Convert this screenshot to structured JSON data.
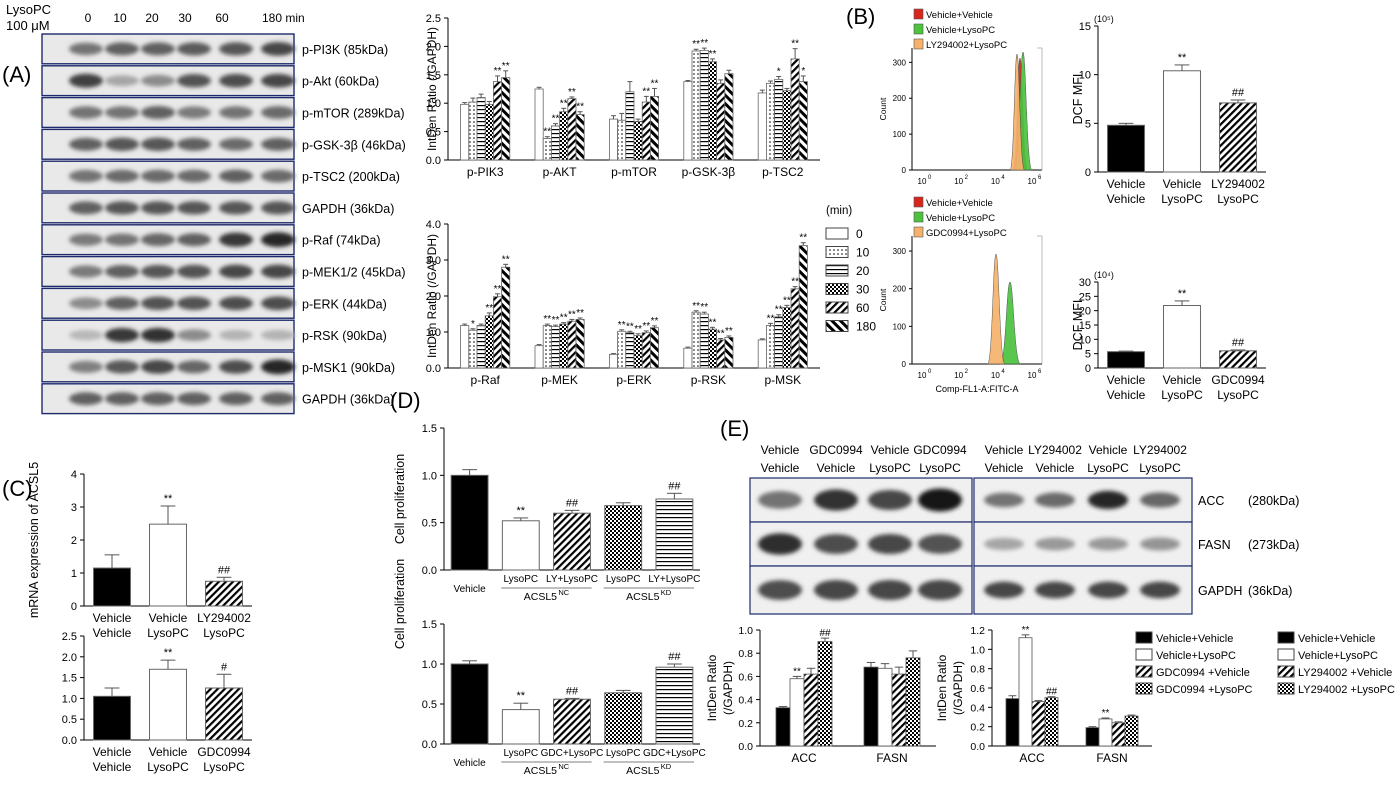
{
  "panel_labels": {
    "A": "(A)",
    "B": "(B)",
    "C": "(C)",
    "D": "(D)",
    "E": "(E)"
  },
  "western_A": {
    "treatment_label": [
      "LysoPC",
      "100 μM"
    ],
    "timepoints": [
      "0",
      "10",
      "20",
      "30",
      "60",
      "180 min"
    ],
    "bands": [
      "p-PI3K (85kDa)",
      "p-Akt (60kDa)",
      "p-mTOR (289kDa)",
      "p-GSK-3β (46kDa)",
      "p-TSC2 (200kDa)",
      "GAPDH (36kDa)",
      "p-Raf (74kDa)",
      "p-MEK1/2 (45kDa)",
      "p-ERK (44kDa)",
      "p-RSK (90kDa)",
      "p-MSK1 (90kDa)",
      "GAPDH (36kDa)"
    ],
    "band_intensity": [
      [
        0.55,
        0.62,
        0.62,
        0.64,
        0.66,
        0.72
      ],
      [
        0.75,
        0.35,
        0.45,
        0.68,
        0.7,
        0.72
      ],
      [
        0.55,
        0.55,
        0.62,
        0.52,
        0.55,
        0.58
      ],
      [
        0.62,
        0.66,
        0.66,
        0.62,
        0.58,
        0.62
      ],
      [
        0.55,
        0.58,
        0.58,
        0.58,
        0.62,
        0.58
      ],
      [
        0.62,
        0.66,
        0.66,
        0.66,
        0.66,
        0.66
      ],
      [
        0.52,
        0.55,
        0.6,
        0.62,
        0.78,
        0.85
      ],
      [
        0.52,
        0.62,
        0.66,
        0.68,
        0.72,
        0.72
      ],
      [
        0.45,
        0.62,
        0.68,
        0.68,
        0.7,
        0.7
      ],
      [
        0.28,
        0.78,
        0.8,
        0.45,
        0.3,
        0.3
      ],
      [
        0.5,
        0.65,
        0.72,
        0.6,
        0.7,
        0.85
      ],
      [
        0.62,
        0.62,
        0.62,
        0.62,
        0.62,
        0.62
      ]
    ]
  },
  "western_E": {
    "left_cols": [
      [
        "Vehicle",
        "Vehicle"
      ],
      [
        "GDC0994",
        "Vehicle"
      ],
      [
        "Vehicle",
        "LysoPC"
      ],
      [
        "GDC0994",
        "LysoPC"
      ]
    ],
    "right_cols": [
      [
        "Vehicle",
        "Vehicle"
      ],
      [
        "LY294002",
        "Vehicle"
      ],
      [
        "Vehicle",
        "LysoPC"
      ],
      [
        "LY294002",
        "LysoPC"
      ]
    ],
    "band_names": [
      "ACC",
      "FASN",
      "GAPDH"
    ],
    "band_sizes": [
      "(280kDa)",
      "(273kDa)",
      "(36kDa)"
    ],
    "left_intensity": [
      [
        0.55,
        0.8,
        0.72,
        0.92
      ],
      [
        0.82,
        0.7,
        0.72,
        0.68
      ],
      [
        0.7,
        0.72,
        0.72,
        0.72
      ]
    ],
    "right_intensity": [
      [
        0.55,
        0.58,
        0.85,
        0.6
      ],
      [
        0.35,
        0.4,
        0.4,
        0.42
      ],
      [
        0.72,
        0.72,
        0.72,
        0.72
      ]
    ]
  },
  "flow_B": {
    "top_legend": [
      "Vehicle+Vehicle",
      "Vehicle+LysoPC",
      "LY294002+LysoPC"
    ],
    "bottom_legend": [
      "Vehicle+Vehicle",
      "Vehicle+LysoPC",
      "GDC0994+LysoPC"
    ],
    "ylabel": "Count",
    "xlabel": "Comp-FL1-A:FITC-A",
    "x_ticks": [
      "10",
      "10",
      "10",
      "10"
    ],
    "x_tick_exponents": [
      "0",
      "2",
      "4",
      "6"
    ],
    "y_ticks": [
      "0",
      "100",
      "200",
      "300"
    ],
    "colors": {
      "red": "#d8261c",
      "green": "#4cc23e",
      "orange": "#f6b26b"
    }
  },
  "legend_A_minutes": {
    "title": "(min)",
    "items": [
      "0",
      "10",
      "20",
      "30",
      "60",
      "180"
    ]
  },
  "legend_E": {
    "left": [
      "Vehicle+Vehicle",
      "Vehicle+LysoPC",
      "GDC0994 +Vehicle",
      "GDC0994 +LysoPC"
    ],
    "right": [
      "Vehicle+Vehicle",
      "Vehicle+LysoPC",
      "LY294002 +Vehicle",
      "LY294002 +LysoPC"
    ]
  },
  "chart_data": [
    {
      "id": "A-top",
      "type": "bar",
      "ylabel": "IntDen Ratio (/GAPDH)",
      "ylim": [
        0,
        2.5
      ],
      "y_ticks": [
        "0.0",
        "0.5",
        "1.0",
        "1.5",
        "2.0",
        "2.5"
      ],
      "categories": [
        "p-PIK3",
        "p-AKT",
        "p-mTOR",
        "p-GSK-3β",
        "p-TSC2"
      ],
      "series": [
        {
          "name": "0",
          "values": [
            0.98,
            1.25,
            0.72,
            1.38,
            1.18
          ],
          "err": [
            0.03,
            0.03,
            0.06,
            0.02,
            0.05
          ]
        },
        {
          "name": "10",
          "values": [
            1.02,
            0.38,
            0.7,
            1.92,
            1.35
          ],
          "err": [
            0.07,
            0.03,
            0.12,
            0.03,
            0.04
          ]
        },
        {
          "name": "20",
          "values": [
            1.1,
            0.6,
            1.2,
            1.93,
            1.42
          ],
          "err": [
            0.06,
            0.04,
            0.18,
            0.04,
            0.05
          ]
        },
        {
          "name": "30",
          "values": [
            0.98,
            0.85,
            0.68,
            1.73,
            1.22
          ],
          "err": [
            0.05,
            0.06,
            0.04,
            0.05,
            0.04
          ]
        },
        {
          "name": "60",
          "values": [
            1.38,
            1.08,
            1.02,
            1.35,
            1.78
          ],
          "err": [
            0.1,
            0.03,
            0.1,
            0.06,
            0.18
          ]
        },
        {
          "name": "180",
          "values": [
            1.45,
            0.8,
            1.12,
            1.52,
            1.38
          ],
          "err": [
            0.12,
            0.05,
            0.14,
            0.06,
            0.1
          ]
        }
      ],
      "sig": [
        [
          "",
          "",
          "",
          "",
          ""
        ],
        [
          "",
          "**",
          "",
          "**",
          ""
        ],
        [
          "",
          "**",
          "",
          "**",
          "*"
        ],
        [
          "",
          "**",
          "",
          "**",
          ""
        ],
        [
          "**",
          "**",
          "**",
          "",
          "**"
        ],
        [
          "**",
          "**",
          "**",
          "",
          "*"
        ]
      ]
    },
    {
      "id": "A-bottom",
      "type": "bar",
      "ylabel": "IntDen Ratio (/GAPDH)",
      "ylim": [
        0,
        4.0
      ],
      "y_ticks": [
        "0.0",
        "1.0",
        "2.0",
        "3.0",
        "4.0"
      ],
      "categories": [
        "p-Raf",
        "p-MEK",
        "p-ERK",
        "p-RSK",
        "p-MSK"
      ],
      "series": [
        {
          "name": "0",
          "values": [
            1.18,
            0.62,
            0.38,
            0.55,
            0.78
          ],
          "err": [
            0.04,
            0.03,
            0.02,
            0.03,
            0.03
          ]
        },
        {
          "name": "10",
          "values": [
            1.05,
            1.18,
            1.02,
            1.55,
            1.18
          ],
          "err": [
            0.04,
            0.04,
            0.04,
            0.04,
            0.06
          ]
        },
        {
          "name": "20",
          "values": [
            1.18,
            1.15,
            0.98,
            1.5,
            1.42
          ],
          "err": [
            0.04,
            0.04,
            0.04,
            0.05,
            0.06
          ]
        },
        {
          "name": "30",
          "values": [
            1.45,
            1.22,
            0.9,
            1.08,
            1.68
          ],
          "err": [
            0.08,
            0.04,
            0.05,
            0.05,
            0.06
          ]
        },
        {
          "name": "60",
          "values": [
            1.98,
            1.3,
            0.98,
            0.78,
            2.2
          ],
          "err": [
            0.08,
            0.05,
            0.05,
            0.04,
            0.06
          ]
        },
        {
          "name": "180",
          "values": [
            2.8,
            1.35,
            1.12,
            0.85,
            3.4
          ],
          "err": [
            0.08,
            0.04,
            0.05,
            0.04,
            0.08
          ]
        }
      ],
      "sig": [
        [
          "",
          "",
          "",
          "",
          ""
        ],
        [
          "*",
          "**",
          "**",
          "**",
          "**"
        ],
        [
          "",
          "**",
          "**",
          "**",
          "**"
        ],
        [
          "**",
          "**",
          "**",
          "**",
          "**"
        ],
        [
          "**",
          "**",
          "**",
          "**",
          "**"
        ],
        [
          "**",
          "**",
          "**",
          "**",
          "**"
        ]
      ]
    },
    {
      "id": "B-top",
      "type": "bar",
      "ylabel": "DCF MFI",
      "scale_note": "(10⁵)",
      "ylim": [
        0,
        15
      ],
      "y_ticks": [
        "0",
        "5",
        "10",
        "15"
      ],
      "categories": [
        [
          "Vehicle",
          "Vehicle"
        ],
        [
          "Vehicle",
          "LysoPC"
        ],
        [
          "LY294002",
          "LysoPC"
        ]
      ],
      "values": [
        4.8,
        10.4,
        7.1
      ],
      "err": [
        0.2,
        0.6,
        0.3
      ],
      "sig": [
        "",
        "**",
        "##"
      ]
    },
    {
      "id": "B-bottom",
      "type": "bar",
      "ylabel": "DCF MFI",
      "scale_note": "(10⁴)",
      "ylim": [
        0,
        30
      ],
      "y_ticks": [
        "0",
        "5",
        "10",
        "15",
        "20",
        "25",
        "30"
      ],
      "categories": [
        [
          "Vehicle",
          "Vehicle"
        ],
        [
          "Vehicle",
          "LysoPC"
        ],
        [
          "GDC0994",
          "LysoPC"
        ]
      ],
      "values": [
        5.7,
        21.8,
        6.0
      ],
      "err": [
        0.2,
        1.6,
        0.3
      ],
      "sig": [
        "",
        "**",
        "##"
      ]
    },
    {
      "id": "C-top",
      "type": "bar",
      "ylabel": "mRNA expression of ACSL5",
      "ylim": [
        0,
        4
      ],
      "y_ticks": [
        "0",
        "1",
        "2",
        "3",
        "4"
      ],
      "categories": [
        [
          "Vehicle",
          "Vehicle"
        ],
        [
          "Vehicle",
          "LysoPC"
        ],
        [
          "LY294002",
          "LysoPC"
        ]
      ],
      "values": [
        1.15,
        2.48,
        0.75
      ],
      "err": [
        0.4,
        0.55,
        0.12
      ],
      "sig": [
        "",
        "**",
        "##"
      ]
    },
    {
      "id": "C-bottom",
      "type": "bar",
      "ylim": [
        0,
        2.5
      ],
      "y_ticks": [
        "0.0",
        "0.5",
        "1.0",
        "1.5",
        "2.0",
        "2.5"
      ],
      "categories": [
        [
          "Vehicle",
          "Vehicle"
        ],
        [
          "Vehicle",
          "LysoPC"
        ],
        [
          "GDC0994",
          "LysoPC"
        ]
      ],
      "values": [
        1.05,
        1.7,
        1.25
      ],
      "err": [
        0.2,
        0.22,
        0.33
      ],
      "sig": [
        "",
        "**",
        "#"
      ]
    },
    {
      "id": "D-top",
      "type": "bar",
      "ylabel": "Cell proliferation",
      "ylim": [
        0,
        1.5
      ],
      "y_ticks": [
        "0.0",
        "0.5",
        "1.0",
        "1.5"
      ],
      "categories": [
        "Vehicle",
        "LysoPC",
        "LY+LysoPC",
        "LysoPC",
        "LY+LysoPC"
      ],
      "groups": [
        {
          "label": "ACSL5",
          "sup": "NC",
          "from": 1,
          "to": 2
        },
        {
          "label": "ACSL5",
          "sup": "KD",
          "from": 3,
          "to": 4
        }
      ],
      "values": [
        1.0,
        0.52,
        0.6,
        0.68,
        0.75
      ],
      "err": [
        0.06,
        0.03,
        0.03,
        0.03,
        0.06
      ],
      "sig": [
        "",
        "**",
        "##",
        "",
        "##"
      ]
    },
    {
      "id": "D-bottom",
      "type": "bar",
      "ylim": [
        0,
        1.5
      ],
      "y_ticks": [
        "0.0",
        "0.5",
        "1.0",
        "1.5"
      ],
      "categories": [
        "Vehicle",
        "LysoPC",
        "GDC+LysoPC",
        "LysoPC",
        "GDC+LysoPC"
      ],
      "groups": [
        {
          "label": "ACSL5",
          "sup": "NC",
          "from": 1,
          "to": 2
        },
        {
          "label": "ACSL5",
          "sup": "KD",
          "from": 3,
          "to": 4
        }
      ],
      "values": [
        1.0,
        0.43,
        0.56,
        0.64,
        0.96
      ],
      "err": [
        0.04,
        0.08,
        0.01,
        0.03,
        0.04
      ],
      "sig": [
        "",
        "**",
        "##",
        "",
        "##"
      ]
    },
    {
      "id": "E-left",
      "type": "bar",
      "ylabel": [
        "IntDen Ratio",
        "(/GAPDH)"
      ],
      "ylim": [
        0,
        1.0
      ],
      "y_ticks": [
        "0.0",
        "0.2",
        "0.4",
        "0.6",
        "0.8",
        "1.0"
      ],
      "categories": [
        "ACC",
        "FASN"
      ],
      "series": [
        {
          "name": "Vehicle+Vehicle",
          "values": [
            0.33,
            0.68
          ],
          "err": [
            0.01,
            0.04
          ]
        },
        {
          "name": "Vehicle+LysoPC",
          "values": [
            0.58,
            0.67
          ],
          "err": [
            0.02,
            0.04
          ]
        },
        {
          "name": "GDC0994 +Vehicle",
          "values": [
            0.62,
            0.62
          ],
          "err": [
            0.05,
            0.06
          ]
        },
        {
          "name": "GDC0994 +LysoPC",
          "values": [
            0.9,
            0.76
          ],
          "err": [
            0.03,
            0.06
          ]
        }
      ],
      "sig": [
        [
          "",
          ""
        ],
        [
          "**",
          ""
        ],
        [
          "",
          ""
        ],
        [
          "##",
          ""
        ]
      ]
    },
    {
      "id": "E-right",
      "type": "bar",
      "ylabel": [
        "IntDen Ratio",
        "(/GAPDH)"
      ],
      "ylim": [
        0,
        1.2
      ],
      "y_ticks": [
        "0.0",
        "0.2",
        "0.4",
        "0.6",
        "0.8",
        "1.0",
        "1.2"
      ],
      "categories": [
        "ACC",
        "FASN"
      ],
      "series": [
        {
          "name": "Vehicle+Vehicle",
          "values": [
            0.49,
            0.19
          ],
          "err": [
            0.03,
            0.01
          ]
        },
        {
          "name": "Vehicle+LysoPC",
          "values": [
            1.12,
            0.28
          ],
          "err": [
            0.03,
            0.01
          ]
        },
        {
          "name": "LY294002 +Vehicle",
          "values": [
            0.46,
            0.24
          ],
          "err": [
            0.01,
            0.01
          ]
        },
        {
          "name": "LY294002 +LysoPC",
          "values": [
            0.5,
            0.31
          ],
          "err": [
            0.01,
            0.01
          ]
        }
      ],
      "sig": [
        [
          "",
          ""
        ],
        [
          "**",
          "**"
        ],
        [
          "",
          ""
        ],
        [
          "##",
          ""
        ]
      ]
    }
  ]
}
